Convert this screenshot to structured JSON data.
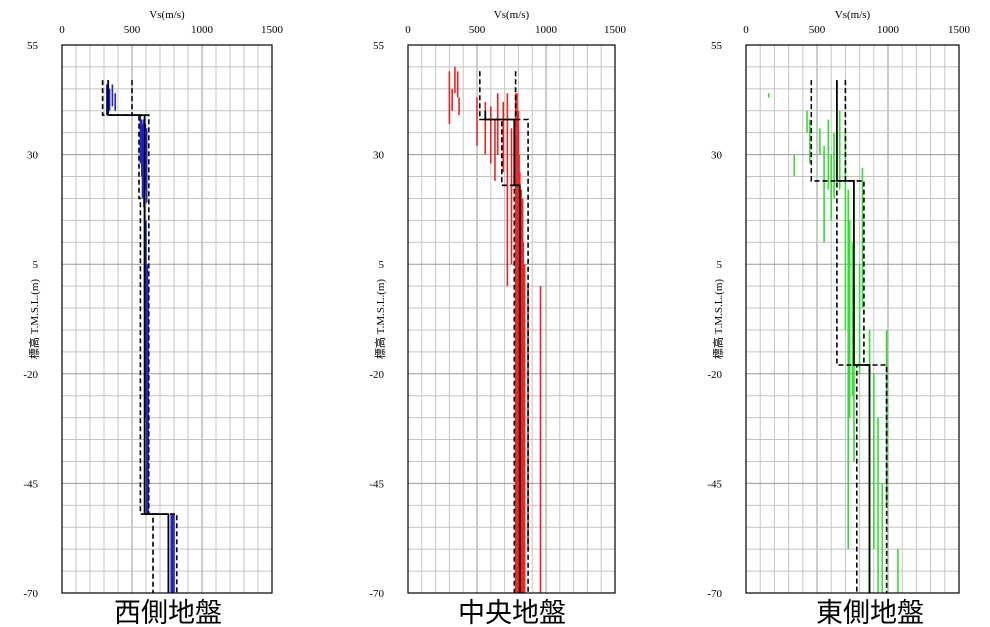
{
  "chart_data": [
    {
      "type": "line",
      "title": "西側地盤",
      "xlabel": "Vs(m/s)",
      "ylabel": "標高 T.M.S.L.(m)",
      "xlim": [
        0,
        1500
      ],
      "ylim": [
        -70,
        55
      ],
      "xticks": [
        "0",
        "500",
        "1000",
        "1500"
      ],
      "yticks": [
        "55",
        "30",
        "5",
        "-20",
        "-45",
        "-70"
      ],
      "grid": true,
      "series": [
        {
          "color": "#2222cc",
          "style": "measured",
          "segments": [
            [
              320,
              46,
              320,
              39
            ],
            [
              340,
              45,
              340,
              40
            ],
            [
              360,
              46,
              360,
              41
            ],
            [
              380,
              44,
              380,
              40
            ],
            [
              560,
              39,
              560,
              28
            ],
            [
              570,
              38,
              570,
              25
            ],
            [
              575,
              37,
              575,
              20
            ],
            [
              585,
              38,
              585,
              18
            ],
            [
              595,
              37,
              595,
              22
            ],
            [
              605,
              36,
              605,
              19
            ],
            [
              590,
              20,
              590,
              -5
            ],
            [
              600,
              15,
              600,
              -30
            ],
            [
              610,
              5,
              610,
              -50
            ],
            [
              615,
              0,
              615,
              -52
            ],
            [
              605,
              -30,
              605,
              -52
            ],
            [
              780,
              -52,
              780,
              -70
            ],
            [
              790,
              -52,
              790,
              -70
            ],
            [
              800,
              -52,
              800,
              -70
            ]
          ]
        },
        {
          "color": "#000000",
          "style": "solid",
          "path": [
            [
              330,
              47
            ],
            [
              330,
              39
            ],
            [
              590,
              39
            ],
            [
              590,
              -52
            ],
            [
              760,
              -52
            ],
            [
              760,
              -70
            ]
          ]
        },
        {
          "color": "#000000",
          "style": "dashed",
          "path": [
            [
              290,
              47
            ],
            [
              290,
              39
            ],
            [
              550,
              39
            ],
            [
              550,
              20
            ],
            [
              560,
              20
            ],
            [
              560,
              -52
            ],
            [
              650,
              -52
            ],
            [
              650,
              -70
            ]
          ]
        },
        {
          "color": "#000000",
          "style": "dashed",
          "path": [
            [
              500,
              47
            ],
            [
              500,
              39
            ],
            [
              620,
              39
            ],
            [
              620,
              -52
            ],
            [
              820,
              -52
            ],
            [
              820,
              -70
            ]
          ]
        }
      ]
    },
    {
      "type": "line",
      "title": "中央地盤",
      "xlabel": "Vs(m/s)",
      "ylabel": "標高 T.M.S.L.(m)",
      "xlim": [
        0,
        1500
      ],
      "ylim": [
        -70,
        55
      ],
      "xticks": [
        "0",
        "500",
        "1000",
        "1500"
      ],
      "yticks": [
        "55",
        "30",
        "5",
        "-20",
        "-45",
        "-70"
      ],
      "grid": true,
      "series": [
        {
          "color": "#ee2222",
          "style": "measured",
          "segments": [
            [
              300,
              49,
              300,
              37
            ],
            [
              320,
              45,
              320,
              40
            ],
            [
              340,
              50,
              340,
              44
            ],
            [
              360,
              49,
              360,
              43
            ],
            [
              370,
              43,
              370,
              39
            ],
            [
              500,
              43,
              500,
              32
            ],
            [
              560,
              42,
              560,
              30
            ],
            [
              600,
              41,
              600,
              28
            ],
            [
              630,
              38,
              630,
              24
            ],
            [
              650,
              44,
              650,
              30
            ],
            [
              690,
              42,
              690,
              26
            ],
            [
              720,
              44,
              720,
              0
            ],
            [
              750,
              36,
              750,
              5
            ],
            [
              780,
              44,
              780,
              -70
            ],
            [
              790,
              44,
              790,
              -70
            ],
            [
              800,
              40,
              800,
              -70
            ],
            [
              805,
              30,
              805,
              -70
            ],
            [
              810,
              26,
              810,
              -70
            ],
            [
              820,
              22,
              820,
              -70
            ],
            [
              830,
              20,
              830,
              -70
            ],
            [
              835,
              10,
              835,
              -70
            ],
            [
              845,
              5,
              845,
              -70
            ],
            [
              870,
              0,
              870,
              -60
            ],
            [
              960,
              0,
              960,
              -70
            ]
          ]
        },
        {
          "color": "#000000",
          "style": "solid",
          "path": [
            [
              560,
              40
            ],
            [
              560,
              38
            ],
            [
              770,
              38
            ],
            [
              770,
              23
            ],
            [
              810,
              23
            ],
            [
              810,
              -70
            ]
          ]
        },
        {
          "color": "#000000",
          "style": "dashed",
          "path": [
            [
              520,
              49
            ],
            [
              520,
              38
            ],
            [
              680,
              38
            ],
            [
              680,
              23
            ],
            [
              770,
              23
            ],
            [
              770,
              -70
            ]
          ]
        },
        {
          "color": "#000000",
          "style": "dashed",
          "path": [
            [
              780,
              49
            ],
            [
              780,
              38
            ],
            [
              870,
              38
            ],
            [
              870,
              23
            ],
            [
              870,
              -70
            ]
          ]
        }
      ]
    },
    {
      "type": "line",
      "title": "東側地盤",
      "xlabel": "Vs(m/s)",
      "ylabel": "標高 T.M.S.L.(m)",
      "xlim": [
        0,
        1500
      ],
      "ylim": [
        -70,
        55
      ],
      "xticks": [
        "0",
        "500",
        "1000",
        "1500"
      ],
      "yticks": [
        "55",
        "30",
        "5",
        "-20",
        "-45",
        "-70"
      ],
      "grid": true,
      "series": [
        {
          "color": "#33dd33",
          "style": "measured",
          "segments": [
            [
              160,
              44,
              160,
              43
            ],
            [
              340,
              30,
              340,
              25
            ],
            [
              430,
              40,
              430,
              35
            ],
            [
              450,
              38,
              450,
              28
            ],
            [
              520,
              36,
              520,
              30
            ],
            [
              550,
              32,
              550,
              10
            ],
            [
              580,
              38,
              580,
              22
            ],
            [
              600,
              30,
              600,
              15
            ],
            [
              620,
              35,
              620,
              20
            ],
            [
              660,
              40,
              660,
              22
            ],
            [
              700,
              35,
              700,
              -10
            ],
            [
              720,
              22,
              720,
              -60
            ],
            [
              730,
              15,
              730,
              -30
            ],
            [
              750,
              10,
              750,
              -25
            ],
            [
              760,
              0,
              760,
              -40
            ],
            [
              800,
              5,
              800,
              -20
            ],
            [
              820,
              27,
              820,
              -5
            ],
            [
              870,
              -10,
              870,
              -70
            ],
            [
              900,
              -20,
              900,
              -60
            ],
            [
              930,
              -30,
              930,
              -70
            ],
            [
              960,
              -45,
              960,
              -70
            ],
            [
              990,
              -10,
              990,
              -50
            ],
            [
              1070,
              -60,
              1070,
              -70
            ]
          ]
        },
        {
          "color": "#000000",
          "style": "solid",
          "path": [
            [
              640,
              47
            ],
            [
              640,
              24
            ],
            [
              760,
              24
            ],
            [
              760,
              -18
            ],
            [
              870,
              -18
            ],
            [
              870,
              -70
            ]
          ]
        },
        {
          "color": "#000000",
          "style": "dashed",
          "path": [
            [
              460,
              47
            ],
            [
              460,
              24
            ],
            [
              640,
              24
            ],
            [
              640,
              -18
            ],
            [
              780,
              -18
            ],
            [
              780,
              -70
            ]
          ]
        },
        {
          "color": "#000000",
          "style": "dashed",
          "path": [
            [
              700,
              47
            ],
            [
              700,
              24
            ],
            [
              830,
              24
            ],
            [
              830,
              -18
            ],
            [
              990,
              -18
            ],
            [
              990,
              -70
            ]
          ]
        }
      ]
    }
  ]
}
